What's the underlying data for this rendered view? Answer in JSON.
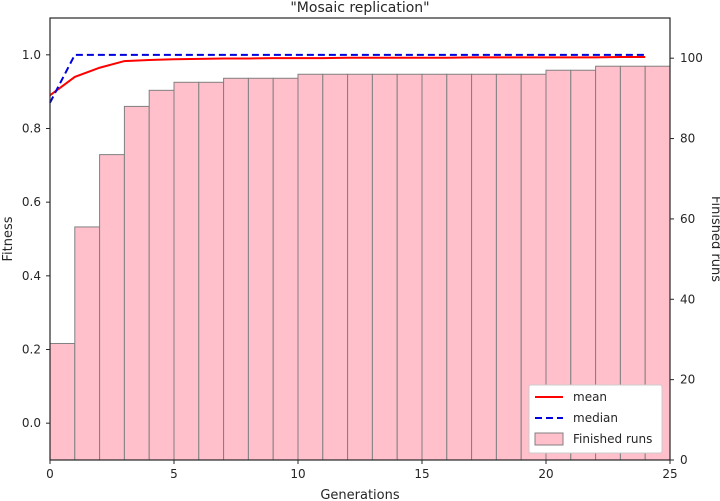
{
  "chart_data": {
    "type": "bar",
    "title": "\"Mosaic replication\"",
    "xlabel": "Generations",
    "ylabel": "Fitness",
    "y2label": "Finished runs",
    "xlim": [
      0,
      25
    ],
    "ylim": [
      -0.1,
      1.1
    ],
    "y2lim": [
      0,
      110
    ],
    "xticks": [
      0,
      5,
      10,
      15,
      20,
      25
    ],
    "yticks": [
      0.0,
      0.2,
      0.4,
      0.6,
      0.8,
      1.0
    ],
    "y2ticks": [
      0,
      20,
      40,
      60,
      80,
      100
    ],
    "grid": false,
    "legend_position": "lower-right",
    "series": [
      {
        "name": "mean",
        "kind": "line",
        "axis": "left",
        "color": "#ff0000",
        "dash": "solid",
        "x": [
          0,
          1,
          2,
          3,
          4,
          5,
          6,
          7,
          8,
          9,
          10,
          11,
          12,
          13,
          14,
          15,
          16,
          17,
          18,
          19,
          20,
          21,
          22,
          23,
          24
        ],
        "values": [
          0.89,
          0.94,
          0.965,
          0.983,
          0.986,
          0.988,
          0.989,
          0.99,
          0.99,
          0.991,
          0.991,
          0.991,
          0.992,
          0.992,
          0.992,
          0.992,
          0.992,
          0.993,
          0.993,
          0.993,
          0.993,
          0.993,
          0.993,
          0.994,
          0.994
        ]
      },
      {
        "name": "median",
        "kind": "line",
        "axis": "left",
        "color": "#0000dd",
        "dash": "dashed",
        "x": [
          0,
          1,
          2,
          3,
          4,
          5,
          6,
          7,
          8,
          9,
          10,
          11,
          12,
          13,
          14,
          15,
          16,
          17,
          18,
          19,
          20,
          21,
          22,
          23,
          24
        ],
        "values": [
          0.87,
          1.0,
          1.0,
          1.0,
          1.0,
          1.0,
          1.0,
          1.0,
          1.0,
          1.0,
          1.0,
          1.0,
          1.0,
          1.0,
          1.0,
          1.0,
          1.0,
          1.0,
          1.0,
          1.0,
          1.0,
          1.0,
          1.0,
          1.0,
          1.0
        ]
      },
      {
        "name": "Finished runs",
        "kind": "bar",
        "axis": "right",
        "color": "#ffc0cb",
        "edge_color": "#808080",
        "x": [
          0,
          1,
          2,
          3,
          4,
          5,
          6,
          7,
          8,
          9,
          10,
          11,
          12,
          13,
          14,
          15,
          16,
          17,
          18,
          19,
          20,
          21,
          22,
          23,
          24
        ],
        "values": [
          29,
          58,
          76,
          88,
          92,
          94,
          94,
          95,
          95,
          95,
          96,
          96,
          96,
          96,
          96,
          96,
          96,
          96,
          96,
          96,
          97,
          97,
          98,
          98,
          98
        ]
      }
    ]
  }
}
